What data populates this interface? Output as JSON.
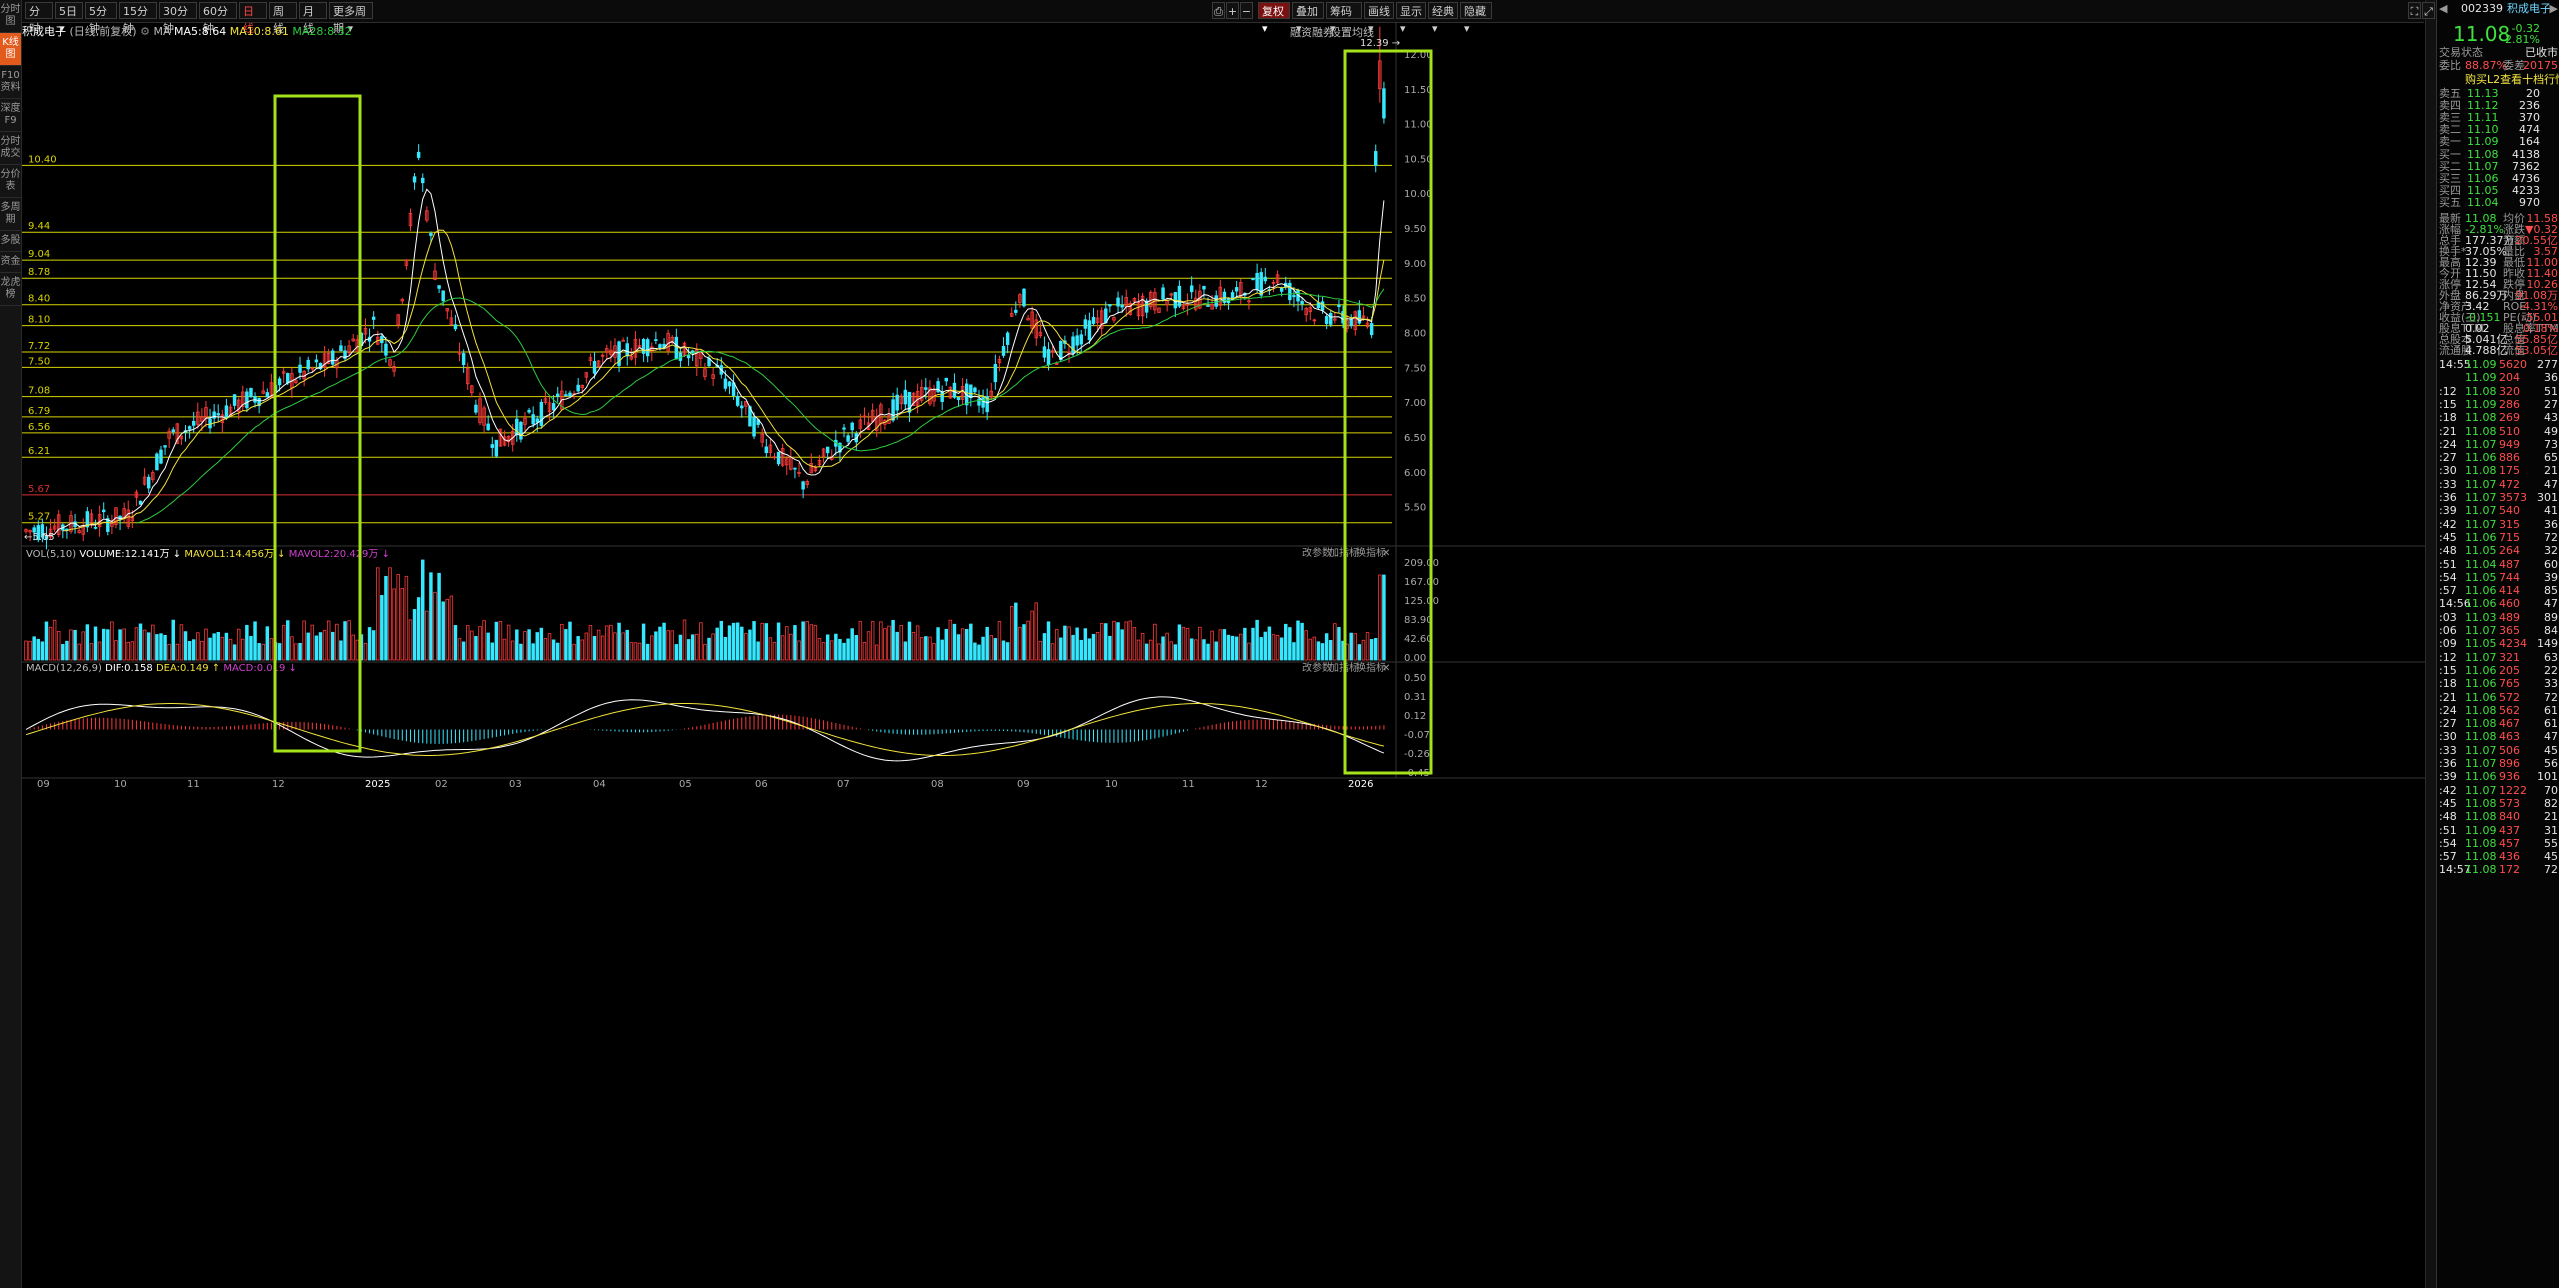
{
  "nav": [
    "分时图",
    "K线图",
    "F10资料",
    "深度F9",
    "分时成交",
    "分价表",
    "多周期",
    "多股",
    "资金",
    "龙虎榜"
  ],
  "nav_active": 1,
  "periods": [
    "分时",
    "5日",
    "5分钟",
    "15分钟",
    "30分钟",
    "60分钟",
    "日线",
    "周线",
    "月线",
    "更多周期"
  ],
  "period_active": 6,
  "toolbar_right": [
    "复权",
    "叠加",
    "筹码",
    "画线",
    "显示",
    "经典",
    "隐藏"
  ],
  "stock_line": {
    "name": "积成电子",
    "mode": "(日线,前复权)",
    "ma_label": "MA",
    "ma5": "MA5:8.64",
    "ma10": "MA10:8.61",
    "ma28": "MA28:8.32"
  },
  "sub_links": [
    "融资融券",
    "设置均线"
  ],
  "price_axis": [
    "12.00",
    "11.50",
    "11.00",
    "10.50",
    "10.00",
    "9.50",
    "9.00",
    "8.50",
    "8.00",
    "7.50",
    "7.00",
    "6.50",
    "6.00",
    "5.50"
  ],
  "levels": [
    "10.40",
    "9.44",
    "9.04",
    "8.78",
    "8.40",
    "8.10",
    "7.72",
    "7.50",
    "7.08",
    "6.79",
    "6.56",
    "6.21",
    "5.67",
    "5.27"
  ],
  "high_label": "12.39",
  "low_label": "5.05",
  "vol_line": {
    "name": "VOL(5,10)",
    "vol": "VOLUME:12.141万",
    "mav1": "MAVOL1:14.456万",
    "mav2": "MAVOL2:20.429万"
  },
  "vol_axis": [
    "209.00",
    "167.00",
    "125.00",
    "83.90",
    "42.60",
    "0.00"
  ],
  "macd_line": {
    "name": "MACD(12,26,9)",
    "dif": "DIF:0.158",
    "dea": "DEA:0.149",
    "macd": "MACD:0.019"
  },
  "macd_axis": [
    "0.50",
    "0.31",
    "0.12",
    "-0.07",
    "-0.26",
    "-0.45"
  ],
  "panel_links": [
    "改参数",
    "加指标",
    "换指标"
  ],
  "dates": [
    "09",
    "10",
    "11",
    "12",
    "2025",
    "02",
    "03",
    "04",
    "05",
    "06",
    "07",
    "08",
    "09",
    "10",
    "11",
    "12",
    "2026"
  ],
  "colors": {
    "up": "#ff3a3a",
    "down": "#35e8ff",
    "level": "#d8d400",
    "box": "#a4e21c",
    "ma5": "#ffffff",
    "ma10": "#f2e23a",
    "ma28": "#2ecc40"
  },
  "quote": {
    "code": "002339",
    "name": "积成电子",
    "price": "11.08",
    "change": "-0.32",
    "change_pct": "-2.81%",
    "status_label": "交易状态",
    "status": "已收市",
    "weibi_label": "委比",
    "weibi": "88.87%",
    "weicha_label": "委差",
    "weicha": "20175",
    "l2_link": "购买L2查看十档行情",
    "asks": [
      {
        "l": "卖五",
        "p": "11.13",
        "v": "20"
      },
      {
        "l": "卖四",
        "p": "11.12",
        "v": "236"
      },
      {
        "l": "卖三",
        "p": "11.11",
        "v": "370"
      },
      {
        "l": "卖二",
        "p": "11.10",
        "v": "474"
      },
      {
        "l": "卖一",
        "p": "11.09",
        "v": "164"
      }
    ],
    "bids": [
      {
        "l": "买一",
        "p": "11.08",
        "v": "4138"
      },
      {
        "l": "买二",
        "p": "11.07",
        "v": "7362"
      },
      {
        "l": "买三",
        "p": "11.06",
        "v": "4736"
      },
      {
        "l": "买四",
        "p": "11.05",
        "v": "4233"
      },
      {
        "l": "买五",
        "p": "11.04",
        "v": "970"
      }
    ],
    "stats": [
      [
        "最新",
        "11.08",
        "均价",
        "11.58"
      ],
      [
        "涨幅",
        "-2.81%",
        "涨跌",
        "▼0.32"
      ],
      [
        "总手",
        "177.37万",
        "金额",
        "20.55亿"
      ],
      [
        "换手*",
        "37.05%",
        "量比",
        "3.57"
      ],
      [
        "最高",
        "12.39",
        "最低",
        "11.00"
      ],
      [
        "今开",
        "11.50",
        "昨收",
        "11.40"
      ],
      [
        "涨停",
        "12.54",
        "跌停",
        "10.26"
      ],
      [
        "外盘",
        "86.29万",
        "内盘",
        "91.08万"
      ],
      [
        "净资产",
        "3.42",
        "ROE",
        "-4.31%"
      ],
      [
        "收益(三)",
        "-0.151",
        "PE(动)",
        "-55.01"
      ],
      [
        "股息TTM",
        "0.02",
        "股息率TTM",
        "0.18%"
      ],
      [
        "总股本",
        "5.041亿",
        "总值",
        "55.85亿"
      ],
      [
        "流通股",
        "4.788亿",
        "流值",
        "53.05亿"
      ]
    ],
    "ticks": [
      [
        "14:55",
        "11.09",
        "5620",
        "277"
      ],
      [
        "",
        "11.09",
        "204",
        "36"
      ],
      [
        ":12",
        "11.08",
        "320",
        "51"
      ],
      [
        ":15",
        "11.09",
        "286",
        "27"
      ],
      [
        ":18",
        "11.08",
        "269",
        "43"
      ],
      [
        ":21",
        "11.08",
        "510",
        "49"
      ],
      [
        ":24",
        "11.07",
        "949",
        "73"
      ],
      [
        ":27",
        "11.06",
        "886",
        "65"
      ],
      [
        ":30",
        "11.08",
        "175",
        "21"
      ],
      [
        ":33",
        "11.07",
        "472",
        "47"
      ],
      [
        ":36",
        "11.07",
        "3573",
        "301"
      ],
      [
        ":39",
        "11.07",
        "540",
        "41"
      ],
      [
        ":42",
        "11.07",
        "315",
        "36"
      ],
      [
        ":45",
        "11.06",
        "715",
        "72"
      ],
      [
        ":48",
        "11.05",
        "264",
        "32"
      ],
      [
        ":51",
        "11.04",
        "487",
        "60"
      ],
      [
        ":54",
        "11.05",
        "744",
        "39"
      ],
      [
        ":57",
        "11.06",
        "414",
        "85"
      ],
      [
        "14:56",
        "11.06",
        "460",
        "47"
      ],
      [
        ":03",
        "11.03",
        "489",
        "89"
      ],
      [
        ":06",
        "11.07",
        "365",
        "84"
      ],
      [
        ":09",
        "11.05",
        "4234",
        "149"
      ],
      [
        ":12",
        "11.07",
        "321",
        "63"
      ],
      [
        ":15",
        "11.06",
        "205",
        "22"
      ],
      [
        ":18",
        "11.06",
        "765",
        "33"
      ],
      [
        ":21",
        "11.06",
        "572",
        "72"
      ],
      [
        ":24",
        "11.08",
        "562",
        "61"
      ],
      [
        ":27",
        "11.08",
        "467",
        "61"
      ],
      [
        ":30",
        "11.08",
        "463",
        "47"
      ],
      [
        ":33",
        "11.07",
        "506",
        "45"
      ],
      [
        ":36",
        "11.07",
        "896",
        "56"
      ],
      [
        ":39",
        "11.06",
        "936",
        "101"
      ],
      [
        ":42",
        "11.07",
        "1222",
        "70"
      ],
      [
        ":45",
        "11.08",
        "573",
        "82"
      ],
      [
        ":48",
        "11.08",
        "840",
        "21"
      ],
      [
        ":51",
        "11.09",
        "437",
        "31"
      ],
      [
        ":54",
        "11.08",
        "457",
        "55"
      ],
      [
        ":57",
        "11.08",
        "436",
        "45"
      ],
      [
        "14:57",
        "11.08",
        "172",
        "72"
      ]
    ]
  }
}
